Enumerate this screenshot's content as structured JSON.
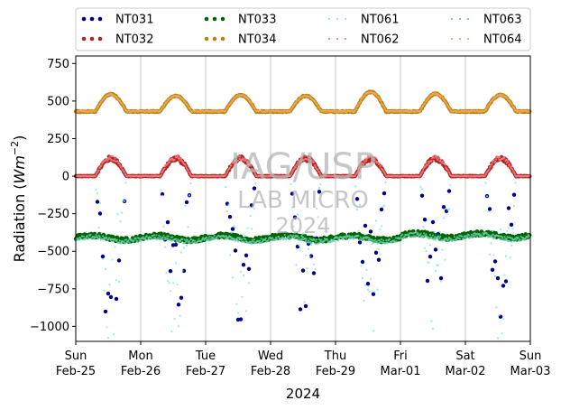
{
  "chart_data": {
    "type": "scatter",
    "ylabel_main": "Radiation (",
    "ylabel_unit": "Wm",
    "ylabel_exp": "−2",
    "ylabel_close": ")",
    "xlabel": "2024",
    "ylim": [
      -1100,
      800
    ],
    "xlim": [
      0,
      7
    ],
    "grid": "vertical",
    "legend_position": "top",
    "y_ticks": [
      {
        "value": 750,
        "label": "750"
      },
      {
        "value": 500,
        "label": "500"
      },
      {
        "value": 250,
        "label": "250"
      },
      {
        "value": 0,
        "label": "0"
      },
      {
        "value": -250,
        "label": "−250"
      },
      {
        "value": -500,
        "label": "−500"
      },
      {
        "value": -750,
        "label": "−750"
      },
      {
        "value": -1000,
        "label": "−1000"
      }
    ],
    "x_ticks": [
      {
        "value": 0,
        "day": "Sun",
        "date": "Feb-25"
      },
      {
        "value": 1,
        "day": "Mon",
        "date": "Feb-26"
      },
      {
        "value": 2,
        "day": "Tue",
        "date": "Feb-27"
      },
      {
        "value": 3,
        "day": "Wed",
        "date": "Feb-28"
      },
      {
        "value": 4,
        "day": "Thu",
        "date": "Feb-29"
      },
      {
        "value": 5,
        "day": "Fri",
        "date": "Mar-01"
      },
      {
        "value": 6,
        "day": "Sat",
        "date": "Mar-02"
      },
      {
        "value": 7,
        "day": "Sun",
        "date": "Mar-03"
      }
    ],
    "series": [
      {
        "name": "NT031",
        "color": "#00008b",
        "style": "dots",
        "baseline": 0,
        "amplitude": -1000,
        "pattern": "spiky-nocturnal"
      },
      {
        "name": "NT032",
        "color": "#b22222",
        "style": "dots",
        "baseline": 0,
        "amplitude": 120,
        "pattern": "diurnal"
      },
      {
        "name": "NT033",
        "color": "#006400",
        "style": "dots",
        "baseline": -410,
        "amplitude": -25,
        "pattern": "noisy"
      },
      {
        "name": "NT034",
        "color": "#b8860b",
        "style": "dots",
        "baseline": 430,
        "amplitude": 110,
        "pattern": "diurnal"
      },
      {
        "name": "NT061",
        "color": "#7fe5f0",
        "style": "light",
        "baseline": 0,
        "amplitude": -1080,
        "pattern": "spiky-nocturnal"
      },
      {
        "name": "NT062",
        "color": "#f08080",
        "style": "light",
        "baseline": 0,
        "amplitude": 125,
        "pattern": "diurnal"
      },
      {
        "name": "NT063",
        "color": "#66cdaa",
        "style": "light",
        "baseline": -420,
        "amplitude": -20,
        "pattern": "noisy"
      },
      {
        "name": "NT064",
        "color": "#f4a460",
        "style": "light",
        "baseline": 432,
        "amplitude": 112,
        "pattern": "diurnal"
      }
    ],
    "daily_peaks_NT034": [
      545,
      535,
      540,
      535,
      560,
      548,
      540
    ],
    "watermark": [
      "IAG/USP",
      "LAB MICRO",
      "2024"
    ]
  }
}
